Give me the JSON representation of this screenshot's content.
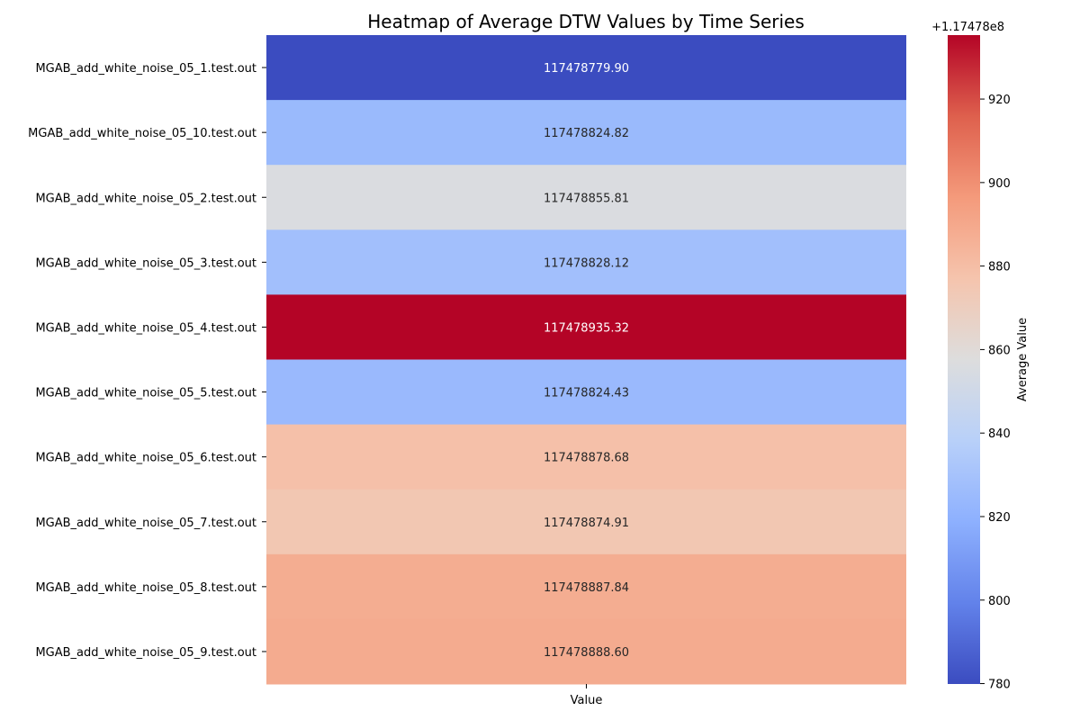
{
  "chart_data": {
    "type": "heatmap",
    "title": "Heatmap of Average DTW Values by Time Series",
    "xlabel": "",
    "ylabel": "",
    "column_labels": [
      "Value"
    ],
    "row_labels": [
      "MGAB_add_white_noise_05_1.test.out",
      "MGAB_add_white_noise_05_10.test.out",
      "MGAB_add_white_noise_05_2.test.out",
      "MGAB_add_white_noise_05_3.test.out",
      "MGAB_add_white_noise_05_4.test.out",
      "MGAB_add_white_noise_05_5.test.out",
      "MGAB_add_white_noise_05_6.test.out",
      "MGAB_add_white_noise_05_7.test.out",
      "MGAB_add_white_noise_05_8.test.out",
      "MGAB_add_white_noise_05_9.test.out"
    ],
    "values": [
      117478779.9,
      117478824.82,
      117478855.81,
      117478828.12,
      117478935.32,
      117478824.43,
      117478878.68,
      117478874.91,
      117478887.84,
      117478888.6
    ],
    "value_labels": [
      "117478779.90",
      "117478824.82",
      "117478855.81",
      "117478828.12",
      "117478935.32",
      "117478824.43",
      "117478878.68",
      "117478874.91",
      "117478887.84",
      "117478888.60"
    ],
    "colormap": "coolwarm",
    "colorbar": {
      "label": "Average Value",
      "offset_label": "+1.17478e8",
      "ticks": [
        780,
        800,
        820,
        840,
        860,
        880,
        900,
        920
      ],
      "tick_labels": [
        "780",
        "800",
        "820",
        "840",
        "860",
        "880",
        "900",
        "920"
      ],
      "offset_value": 117478000,
      "range": [
        117478779.9,
        117478935.32
      ]
    },
    "grid": false,
    "legend": "colorbar right"
  }
}
